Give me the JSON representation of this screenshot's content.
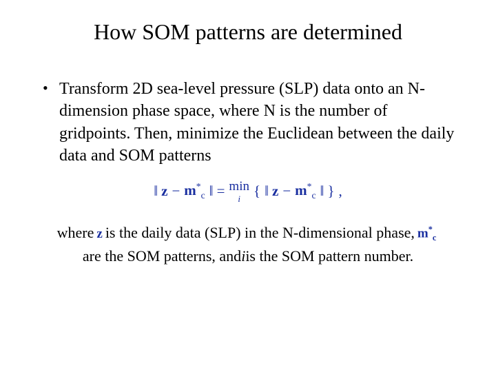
{
  "title": "How SOM patterns are determined",
  "bullet": "Transform 2D sea-level pressure (SLP) data onto an N-dimension phase space, where N is the number of gridpoints.  Then, minimize the Euclidean between the daily data and SOM patterns",
  "equation": {
    "lhs_open": "‖",
    "z": "z",
    "minus": "−",
    "m": "m",
    "c": "c",
    "star": "*",
    "lhs_close": "‖",
    "equals": "=",
    "min": "min",
    "min_sub": "i",
    "brace_open": "{",
    "brace_close": "}",
    "comma": ","
  },
  "where": {
    "w1": "where ",
    "sym_z": "z",
    "w2": " is the daily data (SLP) in the N-dimensional phase, ",
    "sym_m": "m",
    "sym_m_sub": "c",
    "sym_m_sup": "*",
    "w3": " are the SOM patterns, and  ",
    "i": "i",
    "w4": " is the SOM pattern number."
  },
  "colors": {
    "title": "#000000",
    "body": "#000000",
    "equation": "#1a2fa0",
    "background": "#ffffff"
  },
  "fonts": {
    "family": "Times New Roman",
    "title_size_pt": 32,
    "body_size_pt": 24,
    "where_size_pt": 22,
    "equation_size_pt": 21
  }
}
